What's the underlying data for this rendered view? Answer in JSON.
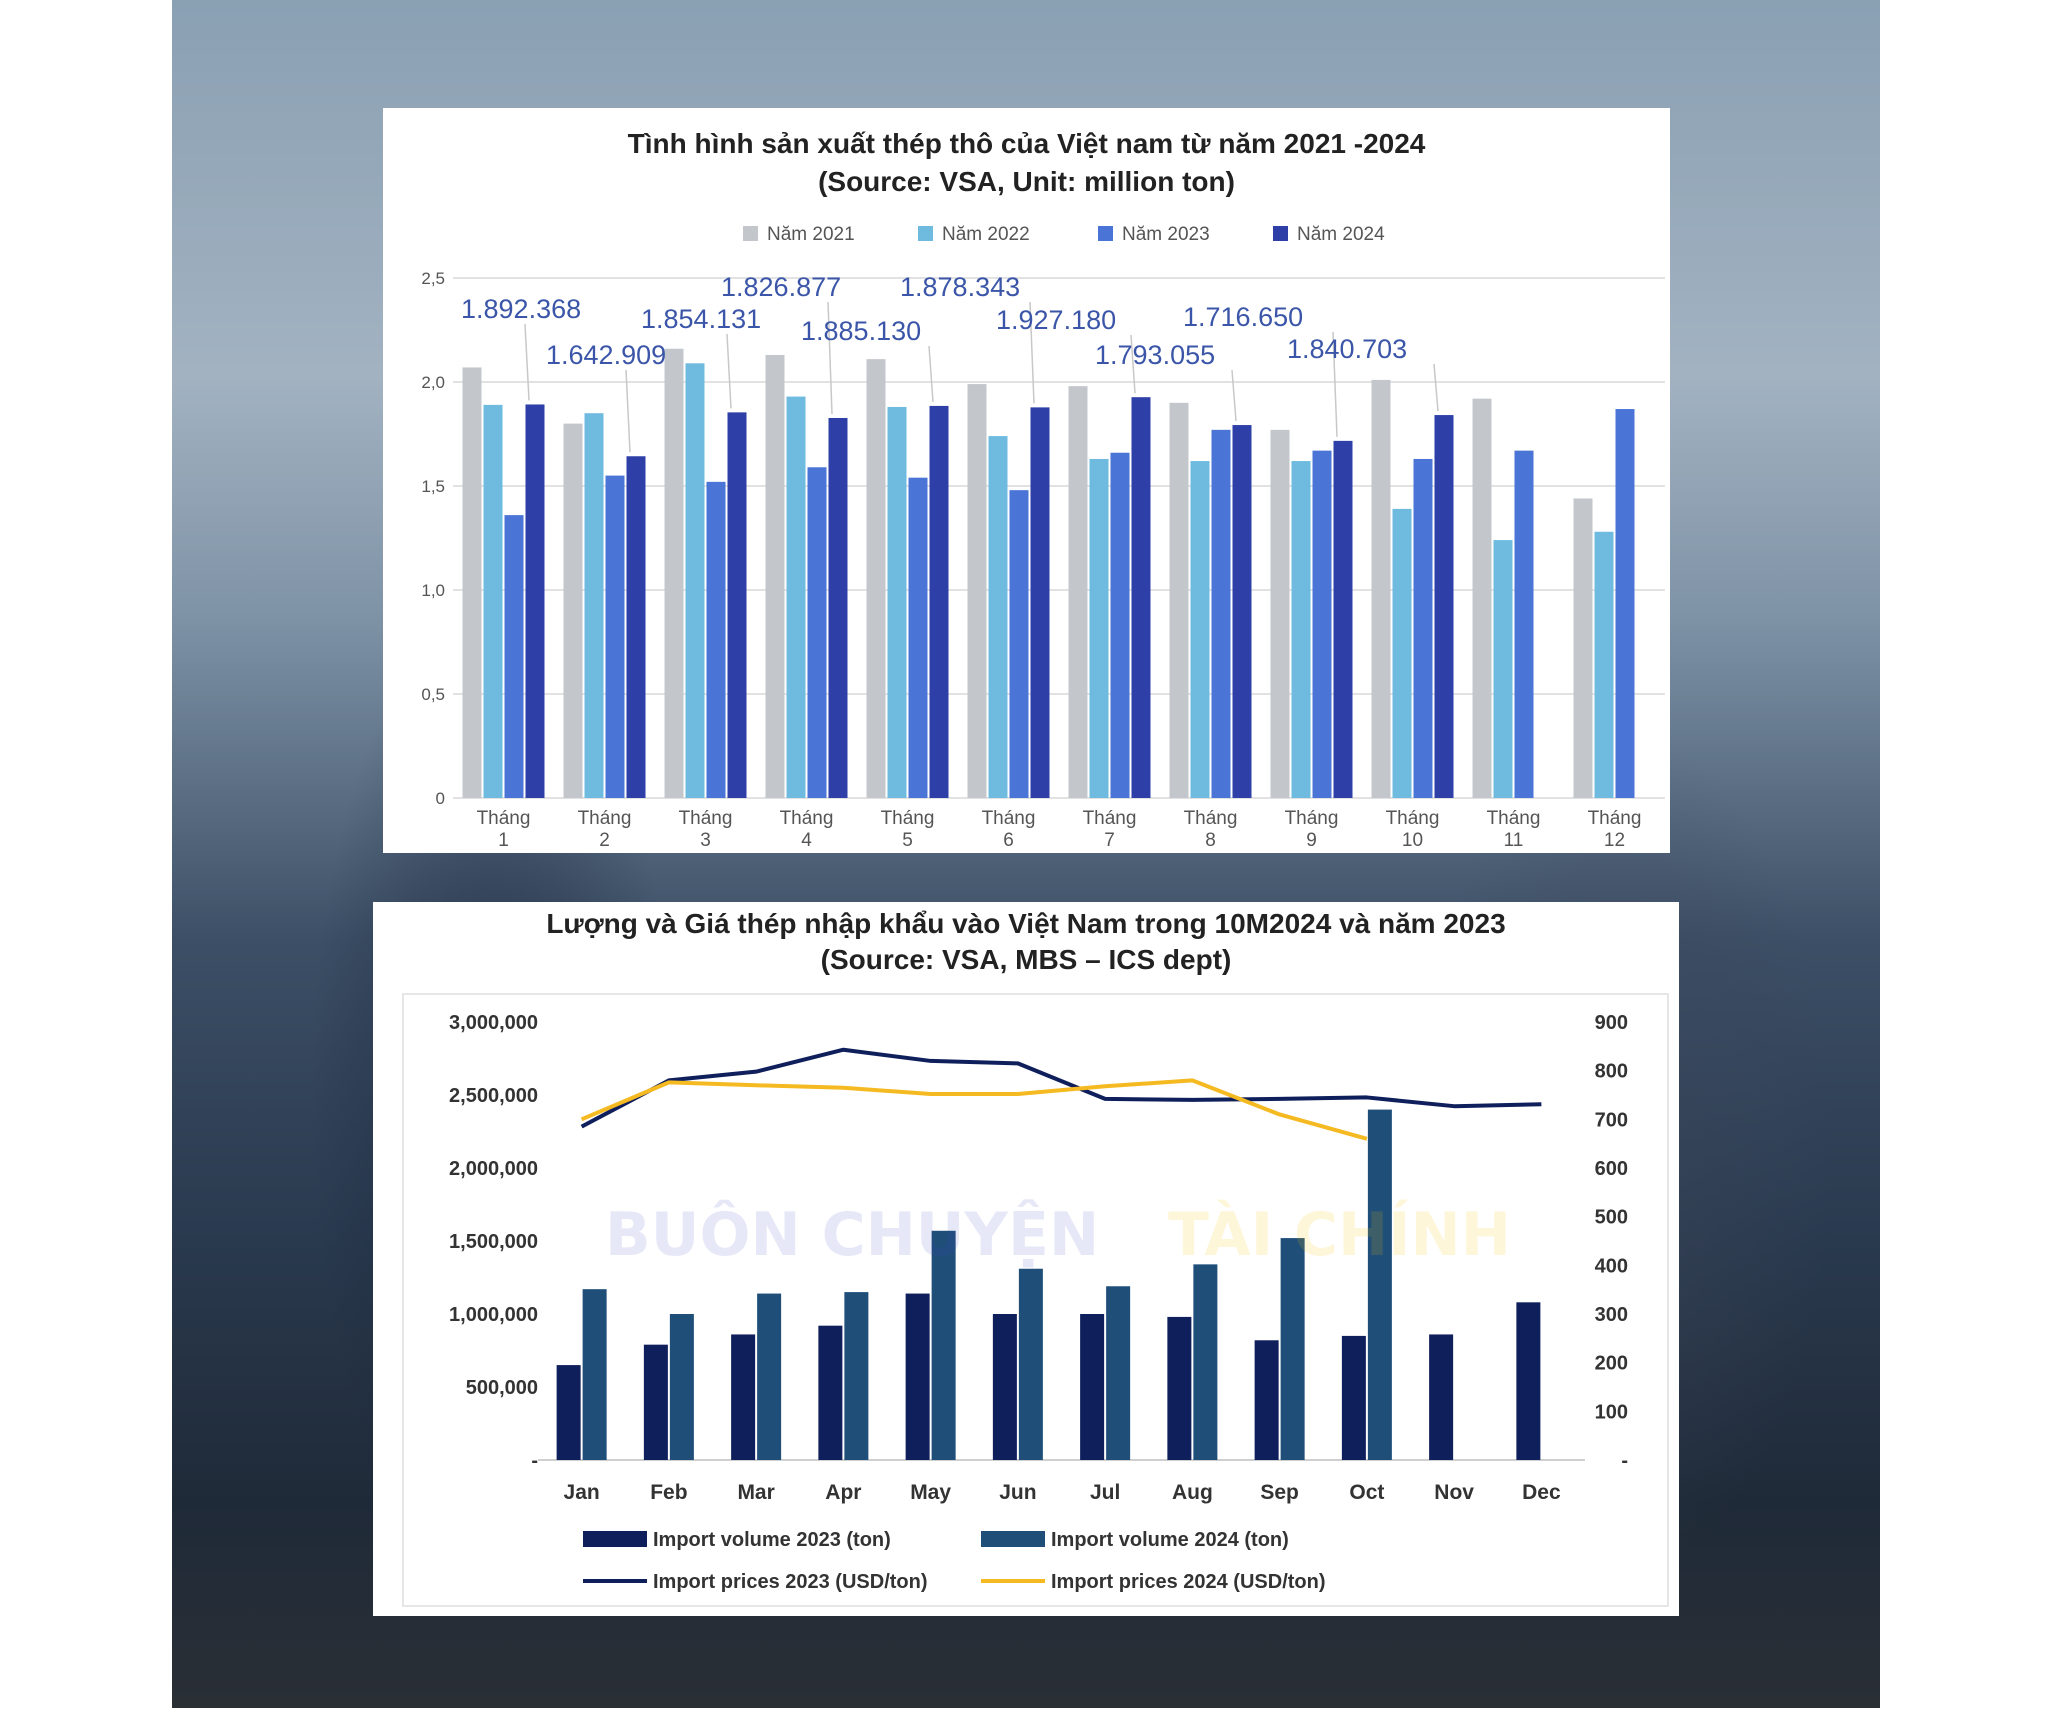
{
  "watermark": {
    "brand": "BUÔN CHUYỆN",
    "brand_accent": "TÀI CHÍNH",
    "brand_color": "#3a4fbf",
    "accent_color": "#f2c200"
  },
  "chart_data": [
    {
      "type": "bar",
      "title": "Tình hình sản xuất thép thô của Việt nam từ năm 2021 -2024",
      "subtitle": "(Source: VSA, Unit: million ton)",
      "categories": [
        "Tháng\n1",
        "Tháng\n2",
        "Tháng\n3",
        "Tháng\n4",
        "Tháng\n5",
        "Tháng\n6",
        "Tháng\n7",
        "Tháng\n8",
        "Tháng\n9",
        "Tháng\n10",
        "Tháng\n11",
        "Tháng\n12"
      ],
      "series": [
        {
          "name": "Năm 2021",
          "color": "#c3c7cc",
          "values": [
            2.07,
            1.8,
            2.16,
            2.13,
            2.11,
            1.99,
            1.98,
            1.9,
            1.77,
            2.01,
            1.92,
            1.44
          ]
        },
        {
          "name": "Năm 2022",
          "color": "#6fbbe0",
          "values": [
            1.89,
            1.85,
            2.09,
            1.93,
            1.88,
            1.74,
            1.63,
            1.62,
            1.62,
            1.39,
            1.24,
            1.28
          ]
        },
        {
          "name": "Năm 2023",
          "color": "#4a74d6",
          "values": [
            1.36,
            1.55,
            1.52,
            1.59,
            1.54,
            1.48,
            1.66,
            1.77,
            1.67,
            1.63,
            1.67,
            1.87
          ]
        },
        {
          "name": "Năm 2024",
          "color": "#2e3fa8",
          "values": [
            1.892,
            1.643,
            1.854,
            1.827,
            1.885,
            1.878,
            1.927,
            1.793,
            1.717,
            1.841,
            null,
            null
          ]
        }
      ],
      "data_labels": [
        "1.892.368",
        "1.642.909",
        "1.854.131",
        "1.826.877",
        "1.885.130",
        "1.878.343",
        "1.927.180",
        "1.793.055",
        "1.716.650",
        "1.840.703"
      ],
      "yticks": [
        "0",
        "0,5",
        "1,0",
        "1,5",
        "2,0",
        "2,5"
      ],
      "ylim": [
        0,
        2.5
      ],
      "grid": true,
      "legend_position": "top"
    },
    {
      "type": "bar",
      "title": "Lượng và Giá thép nhập khẩu vào Việt Nam trong 10M2024 và năm 2023",
      "subtitle": "(Source: VSA, MBS – ICS dept)",
      "categories": [
        "Jan",
        "Feb",
        "Mar",
        "Apr",
        "May",
        "Jun",
        "Jul",
        "Aug",
        "Sep",
        "Oct",
        "Nov",
        "Dec"
      ],
      "series": [
        {
          "name": "Import volume 2023 (ton)",
          "kind": "bar",
          "axis": "left",
          "color": "#0e1f5b",
          "values": [
            650000,
            790000,
            860000,
            920000,
            1140000,
            1000000,
            1000000,
            980000,
            820000,
            850000,
            860000,
            1080000
          ]
        },
        {
          "name": "Import volume 2024 (ton)",
          "kind": "bar",
          "axis": "left",
          "color": "#1f4e79",
          "values": [
            1170000,
            1000000,
            1140000,
            1150000,
            1570000,
            1310000,
            1190000,
            1340000,
            1520000,
            2400000,
            null,
            null
          ]
        },
        {
          "name": "Import prices 2023 (USD/ton)",
          "kind": "line",
          "axis": "right",
          "color": "#0e1f5b",
          "values": [
            685,
            780,
            798,
            843,
            820,
            815,
            742,
            740,
            742,
            745,
            727,
            731
          ]
        },
        {
          "name": "Import prices 2024 (USD/ton)",
          "kind": "line",
          "axis": "right",
          "color": "#f5b921",
          "values": [
            700,
            776,
            770,
            765,
            752,
            752,
            768,
            780,
            710,
            660,
            null,
            null
          ]
        }
      ],
      "yticks_left": [
        "-",
        "500,000",
        "1,000,000",
        "1,500,000",
        "2,000,000",
        "2,500,000",
        "3,000,000"
      ],
      "yticks_right": [
        "-",
        "100",
        "200",
        "300",
        "400",
        "500",
        "600",
        "700",
        "800",
        "900"
      ],
      "ylim_left": [
        0,
        3000000
      ],
      "ylim_right": [
        0,
        900
      ],
      "grid": false,
      "legend_position": "bottom"
    }
  ]
}
